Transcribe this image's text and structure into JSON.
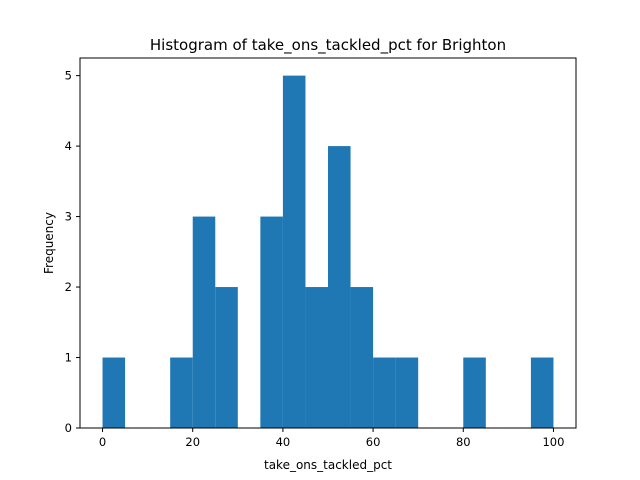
{
  "chart_data": {
    "type": "bar",
    "title": "Histogram of take_ons_tackled_pct for Brighton",
    "xlabel": "take_ons_tackled_pct",
    "ylabel": "Frequency",
    "xlim": [
      -5,
      105
    ],
    "ylim": [
      0,
      5.25
    ],
    "xticks": [
      0,
      20,
      40,
      60,
      80,
      100
    ],
    "yticks": [
      0,
      1,
      2,
      3,
      4,
      5
    ],
    "bin_edges": [
      0,
      5,
      10,
      15,
      20,
      25,
      30,
      35,
      40,
      45,
      50,
      55,
      60,
      65,
      70,
      75,
      80,
      85,
      90,
      95,
      100
    ],
    "counts": [
      1,
      0,
      0,
      1,
      3,
      2,
      0,
      3,
      5,
      2,
      4,
      2,
      1,
      1,
      0,
      0,
      1,
      0,
      0,
      1
    ],
    "bar_color": "#1f77b4",
    "grid": false
  }
}
